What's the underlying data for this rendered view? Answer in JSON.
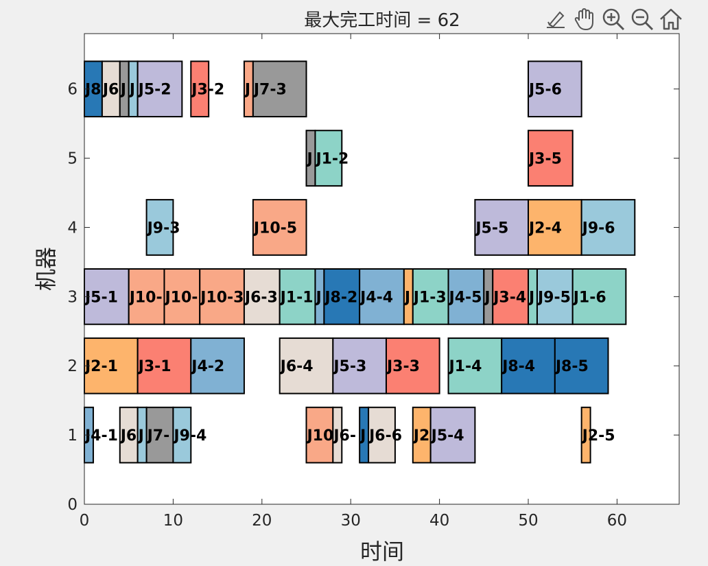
{
  "chart_data": {
    "type": "gantt",
    "title": "最大完工时间 = 62",
    "xlabel": "时间",
    "ylabel": "机器",
    "xlim": [
      0,
      67
    ],
    "ylim": [
      0,
      6.8
    ],
    "xticks": [
      0,
      10,
      20,
      30,
      40,
      50,
      60
    ],
    "yticks": [
      0,
      1,
      2,
      3,
      4,
      5,
      6
    ],
    "grid": false,
    "job_colors": {
      "J1": "#8dd3c7",
      "J2": "#fdb46c",
      "J3": "#fb8072",
      "J4": "#80b1d3",
      "J5": "#bebada",
      "J6": "#e6dcd4",
      "J7": "#999999",
      "J8": "#2878b5",
      "J9": "#9ac9db",
      "J10": "#f9a887"
    },
    "tasks": [
      {
        "machine": 6,
        "start": 0,
        "end": 2,
        "job": "J8",
        "label": "J8"
      },
      {
        "machine": 6,
        "start": 2,
        "end": 4,
        "job": "J6",
        "label": "J6"
      },
      {
        "machine": 6,
        "start": 4,
        "end": 5,
        "job": "J7",
        "label": "J"
      },
      {
        "machine": 6,
        "start": 5,
        "end": 6,
        "job": "J9",
        "label": "J"
      },
      {
        "machine": 6,
        "start": 6,
        "end": 11,
        "job": "J5",
        "label": "J5-2"
      },
      {
        "machine": 6,
        "start": 12,
        "end": 14,
        "job": "J3",
        "label": "J3-2"
      },
      {
        "machine": 6,
        "start": 18,
        "end": 19,
        "job": "J10",
        "label": "J"
      },
      {
        "machine": 6,
        "start": 19,
        "end": 25,
        "job": "J7",
        "label": "J7-3"
      },
      {
        "machine": 6,
        "start": 50,
        "end": 56,
        "job": "J5",
        "label": "J5-6"
      },
      {
        "machine": 5,
        "start": 25,
        "end": 26,
        "job": "J7",
        "label": "J"
      },
      {
        "machine": 5,
        "start": 26,
        "end": 29,
        "job": "J1",
        "label": "J1-2"
      },
      {
        "machine": 5,
        "start": 50,
        "end": 55,
        "job": "J3",
        "label": "J3-5"
      },
      {
        "machine": 4,
        "start": 7,
        "end": 10,
        "job": "J9",
        "label": "J9-3"
      },
      {
        "machine": 4,
        "start": 19,
        "end": 25,
        "job": "J10",
        "label": "J10-5"
      },
      {
        "machine": 4,
        "start": 44,
        "end": 50,
        "job": "J5",
        "label": "J5-5"
      },
      {
        "machine": 4,
        "start": 50,
        "end": 56,
        "job": "J2",
        "label": "J2-4"
      },
      {
        "machine": 4,
        "start": 56,
        "end": 62,
        "job": "J9",
        "label": "J9-6"
      },
      {
        "machine": 3,
        "start": 0,
        "end": 5,
        "job": "J5",
        "label": "J5-1"
      },
      {
        "machine": 3,
        "start": 5,
        "end": 9,
        "job": "J10",
        "label": "J10-"
      },
      {
        "machine": 3,
        "start": 9,
        "end": 13,
        "job": "J10",
        "label": "J10-"
      },
      {
        "machine": 3,
        "start": 13,
        "end": 18,
        "job": "J10",
        "label": "J10-3"
      },
      {
        "machine": 3,
        "start": 18,
        "end": 22,
        "job": "J6",
        "label": "J6-3"
      },
      {
        "machine": 3,
        "start": 22,
        "end": 26,
        "job": "J1",
        "label": "J1-1"
      },
      {
        "machine": 3,
        "start": 26,
        "end": 27,
        "job": "J4",
        "label": "J"
      },
      {
        "machine": 3,
        "start": 27,
        "end": 31,
        "job": "J8",
        "label": "J8-2"
      },
      {
        "machine": 3,
        "start": 31,
        "end": 36,
        "job": "J4",
        "label": "J4-4"
      },
      {
        "machine": 3,
        "start": 36,
        "end": 37,
        "job": "J2",
        "label": "J"
      },
      {
        "machine": 3,
        "start": 37,
        "end": 41,
        "job": "J1",
        "label": "J1-3"
      },
      {
        "machine": 3,
        "start": 41,
        "end": 45,
        "job": "J4",
        "label": "J4-5"
      },
      {
        "machine": 3,
        "start": 45,
        "end": 46,
        "job": "J7",
        "label": "J"
      },
      {
        "machine": 3,
        "start": 46,
        "end": 50,
        "job": "J3",
        "label": "J3-4"
      },
      {
        "machine": 3,
        "start": 50,
        "end": 51,
        "job": "J1",
        "label": "J"
      },
      {
        "machine": 3,
        "start": 51,
        "end": 55,
        "job": "J9",
        "label": "J9-5"
      },
      {
        "machine": 3,
        "start": 55,
        "end": 61,
        "job": "J1",
        "label": "J1-6"
      },
      {
        "machine": 2,
        "start": 0,
        "end": 6,
        "job": "J2",
        "label": "J2-1"
      },
      {
        "machine": 2,
        "start": 6,
        "end": 12,
        "job": "J3",
        "label": "J3-1"
      },
      {
        "machine": 2,
        "start": 12,
        "end": 18,
        "job": "J4",
        "label": "J4-2"
      },
      {
        "machine": 2,
        "start": 22,
        "end": 28,
        "job": "J6",
        "label": "J6-4"
      },
      {
        "machine": 2,
        "start": 28,
        "end": 34,
        "job": "J5",
        "label": "J5-3"
      },
      {
        "machine": 2,
        "start": 34,
        "end": 40,
        "job": "J3",
        "label": "J3-3"
      },
      {
        "machine": 2,
        "start": 41,
        "end": 47,
        "job": "J1",
        "label": "J1-4"
      },
      {
        "machine": 2,
        "start": 47,
        "end": 53,
        "job": "J8",
        "label": "J8-4"
      },
      {
        "machine": 2,
        "start": 53,
        "end": 59,
        "job": "J8",
        "label": "J8-5"
      },
      {
        "machine": 1,
        "start": 0,
        "end": 1,
        "job": "J4",
        "label": "J4-1"
      },
      {
        "machine": 1,
        "start": 4,
        "end": 6,
        "job": "J6",
        "label": "J6"
      },
      {
        "machine": 1,
        "start": 6,
        "end": 7,
        "job": "J9",
        "label": "J"
      },
      {
        "machine": 1,
        "start": 7,
        "end": 10,
        "job": "J7",
        "label": "J7-"
      },
      {
        "machine": 1,
        "start": 10,
        "end": 12,
        "job": "J9",
        "label": "J9-4"
      },
      {
        "machine": 1,
        "start": 25,
        "end": 28,
        "job": "J10",
        "label": "J10"
      },
      {
        "machine": 1,
        "start": 28,
        "end": 29,
        "job": "J6",
        "label": "J6-"
      },
      {
        "machine": 1,
        "start": 31,
        "end": 32,
        "job": "J8",
        "label": "J"
      },
      {
        "machine": 1,
        "start": 32,
        "end": 35,
        "job": "J6",
        "label": "J6-6"
      },
      {
        "machine": 1,
        "start": 37,
        "end": 39,
        "job": "J2",
        "label": "J2"
      },
      {
        "machine": 1,
        "start": 39,
        "end": 44,
        "job": "J5",
        "label": "J5-4"
      },
      {
        "machine": 1,
        "start": 56,
        "end": 57,
        "job": "J2",
        "label": "J2-5"
      }
    ]
  },
  "toolbar": {
    "icons": [
      "brush-icon",
      "pan-hand-icon",
      "zoom-in-icon",
      "zoom-out-icon",
      "home-icon"
    ]
  }
}
